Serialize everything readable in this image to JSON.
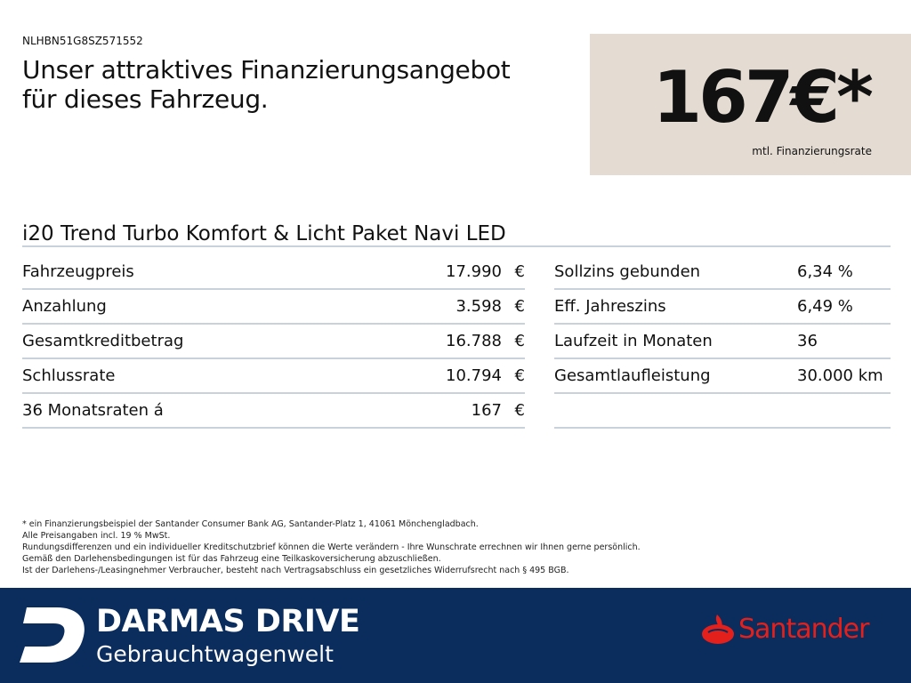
{
  "vin": "NLHBN51G8SZ571552",
  "headline": [
    "Unser attraktives Finanzierungsangebot",
    "für dieses Fahrzeug."
  ],
  "price": {
    "amount": "167€*",
    "label": "mtl. Finanzierungsrate"
  },
  "model": "i20 Trend Turbo Komfort & Licht Paket Navi LED",
  "left_rows": [
    {
      "label": "Fahrzeugpreis",
      "value": "17.990",
      "currency": "€"
    },
    {
      "label": "Anzahlung",
      "value": "3.598",
      "currency": "€"
    },
    {
      "label": "Gesamtkreditbetrag",
      "value": "16.788",
      "currency": "€"
    },
    {
      "label": "Schlussrate",
      "value": "10.794",
      "currency": "€"
    },
    {
      "label": "36 Monatsraten á",
      "value": "167",
      "currency": "€"
    }
  ],
  "right_rows": [
    {
      "label": "Sollzins gebunden",
      "value": "6,34 %"
    },
    {
      "label": "Eff. Jahreszins",
      "value": "6,49 %"
    },
    {
      "label": "Laufzeit in Monaten",
      "value": "36"
    },
    {
      "label": "Gesamtlaufleistung",
      "value": "30.000 km"
    }
  ],
  "disclaimer": [
    "* ein Finanzierungsbeispiel der Santander Consumer Bank AG, Santander-Platz 1, 41061 Mönchengladbach.",
    "Alle Preisangaben incl. 19 % MwSt.",
    "Rundungsdifferenzen und ein individueller Kreditschutzbrief können die Werte verändern - Ihre Wunschrate errechnen wir Ihnen gerne persönlich.",
    "Gemäß den Darlehensbedingungen ist für das Fahrzeug eine Teilkaskoversicherung abzuschließen.",
    "Ist der Darlehens-/Leasingnehmer Verbraucher, besteht nach Vertragsabschluss ein gesetzliches Widerrufsrecht nach § 495 BGB."
  ],
  "footer": {
    "brand": "DARMAS DRIVE",
    "sub": "Gebrauchtwagenwelt",
    "partner": "Santander",
    "colors": {
      "footer_bg": "#0a2d5e",
      "santander_red": "#e3201b",
      "price_box": "#e4dcd3"
    }
  }
}
